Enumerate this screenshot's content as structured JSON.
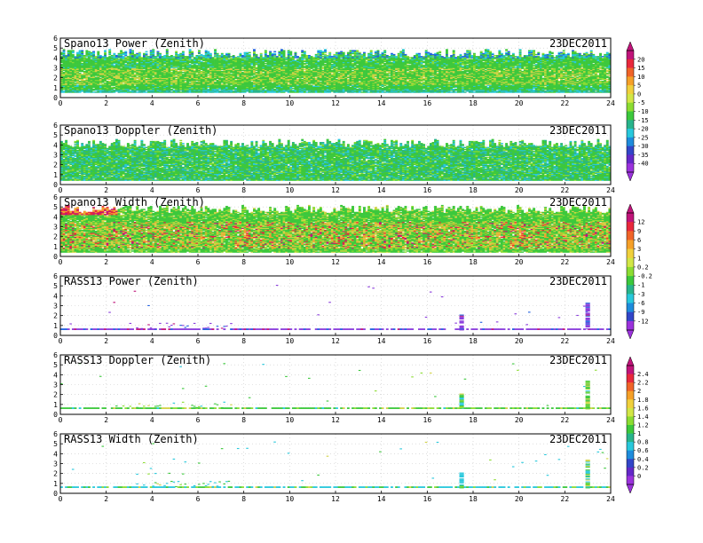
{
  "figure": {
    "date": "23DEC2011"
  },
  "chart_data": [
    {
      "type": "heatmap",
      "title": "Spano13 Power (Zenith)",
      "date": "23DEC2011",
      "xlim": [
        0,
        24
      ],
      "ylim": [
        0,
        6
      ],
      "x_ticks": [
        "0",
        "2",
        "4",
        "6",
        "8",
        "10",
        "12",
        "14",
        "16",
        "18",
        "20",
        "22",
        "24"
      ],
      "y_ticks": [
        "0",
        "1",
        "2",
        "3",
        "4",
        "5",
        "6"
      ],
      "coverage": {
        "kind": "dense",
        "y_low": 0.5,
        "y_high": 4.5,
        "dominant": "green",
        "variation": "yellow bands near 1-3"
      },
      "colorbar": "cb_main"
    },
    {
      "type": "heatmap",
      "title": "Spano13 Doppler (Zenith)",
      "date": "23DEC2011",
      "xlim": [
        0,
        24
      ],
      "ylim": [
        0,
        6
      ],
      "x_ticks": [
        "0",
        "2",
        "4",
        "6",
        "8",
        "10",
        "12",
        "14",
        "16",
        "18",
        "20",
        "22",
        "24"
      ],
      "y_ticks": [
        "0",
        "1",
        "2",
        "3",
        "4",
        "5",
        "6"
      ],
      "coverage": {
        "kind": "dense",
        "y_low": 0.4,
        "y_high": 4.2,
        "dominant": "green",
        "variation": "cyan patches"
      },
      "colorbar": "cb_main"
    },
    {
      "type": "heatmap",
      "title": "Spano13 Width (Zenith)",
      "date": "23DEC2011",
      "xlim": [
        0,
        24
      ],
      "ylim": [
        0,
        6
      ],
      "x_ticks": [
        "0",
        "2",
        "4",
        "6",
        "8",
        "10",
        "12",
        "14",
        "16",
        "18",
        "20",
        "22",
        "24"
      ],
      "y_ticks": [
        "0",
        "1",
        "2",
        "3",
        "4",
        "5",
        "6"
      ],
      "coverage": {
        "kind": "dense",
        "y_low": 0.4,
        "y_high": 4.8,
        "dominant": "green",
        "variation": "yellow/orange/red speckle at 1-3"
      },
      "colorbar": "cb_width"
    },
    {
      "type": "heatmap",
      "title": "RASS13 Power (Zenith)",
      "date": "23DEC2011",
      "xlim": [
        0,
        24
      ],
      "ylim": [
        0,
        6
      ],
      "x_ticks": [
        "0",
        "2",
        "4",
        "6",
        "8",
        "10",
        "12",
        "14",
        "16",
        "18",
        "20",
        "22",
        "24"
      ],
      "y_ticks": [
        "0",
        "1",
        "2",
        "3",
        "4",
        "5",
        "6"
      ],
      "coverage": {
        "kind": "sparse",
        "base_height": 0.6,
        "dominant": "purple",
        "spikes_at": [
          17.5,
          23
        ]
      },
      "colorbar": "cb_width"
    },
    {
      "type": "heatmap",
      "title": "RASS13 Doppler (Zenith)",
      "date": "23DEC2011",
      "xlim": [
        0,
        24
      ],
      "ylim": [
        0,
        6
      ],
      "x_ticks": [
        "0",
        "2",
        "4",
        "6",
        "8",
        "10",
        "12",
        "14",
        "16",
        "18",
        "20",
        "22",
        "24"
      ],
      "y_ticks": [
        "0",
        "1",
        "2",
        "3",
        "4",
        "5",
        "6"
      ],
      "coverage": {
        "kind": "sparse",
        "base_height": 0.6,
        "dominant": "green",
        "spikes_at": [
          17.5,
          23
        ]
      },
      "colorbar": "cb_rass"
    },
    {
      "type": "heatmap",
      "title": "RASS13 Width (Zenith)",
      "date": "23DEC2011",
      "xlim": [
        0,
        24
      ],
      "ylim": [
        0,
        6
      ],
      "x_ticks": [
        "0",
        "2",
        "4",
        "6",
        "8",
        "10",
        "12",
        "14",
        "16",
        "18",
        "20",
        "22",
        "24"
      ],
      "y_ticks": [
        "0",
        "1",
        "2",
        "3",
        "4",
        "5",
        "6"
      ],
      "coverage": {
        "kind": "sparse",
        "base_height": 0.6,
        "dominant": "cyan",
        "spikes_at": [
          17.5,
          23
        ]
      },
      "colorbar": "cb_rass"
    }
  ],
  "colorbars": {
    "cb_main": {
      "labels": [
        "20",
        "15",
        "10",
        "5",
        "0",
        "-5",
        "-10",
        "-15",
        "-20",
        "-25",
        "-30",
        "-35",
        "-40"
      ],
      "colors": [
        "#c0147a",
        "#e8283c",
        "#f06428",
        "#f5a028",
        "#f0d03c",
        "#d2e646",
        "#8cdc32",
        "#3cc83c",
        "#28b48c",
        "#28c8dc",
        "#1e8cdc",
        "#3246c8",
        "#6428c8",
        "#9b32dc"
      ]
    },
    "cb_width": {
      "labels": [
        "12",
        "9",
        "6",
        "3",
        "1",
        "0.2",
        "-0.2",
        "-1",
        "-3",
        "-6",
        "-9",
        "-12"
      ],
      "colors": [
        "#c0147a",
        "#e8283c",
        "#f06428",
        "#f5a028",
        "#f0d03c",
        "#d2e646",
        "#8cdc32",
        "#3cc83c",
        "#28b48c",
        "#28c8dc",
        "#1e8cdc",
        "#3246c8",
        "#9b32dc"
      ]
    },
    "cb_rass": {
      "labels": [
        "2.4",
        "2.2",
        "2",
        "1.8",
        "1.6",
        "1.4",
        "1.2",
        "1",
        "0.8",
        "0.6",
        "0.4",
        "0.2",
        "0"
      ],
      "colors": [
        "#c0147a",
        "#e8283c",
        "#f06428",
        "#f5a028",
        "#f0d03c",
        "#d2e646",
        "#8cdc32",
        "#3cc83c",
        "#28b48c",
        "#28c8dc",
        "#1e8cdc",
        "#3246c8",
        "#6428c8",
        "#9b32dc"
      ]
    }
  },
  "palette": {
    "purple": "#8a3cdc",
    "blue": "#2060e0",
    "cyan": "#28c8dc",
    "teal": "#28b48c",
    "green": "#3cc83c",
    "lightgreen": "#8cdc32",
    "yellow": "#d2d246",
    "orange": "#f0a030",
    "red": "#e8283c",
    "magenta": "#c0147a"
  }
}
